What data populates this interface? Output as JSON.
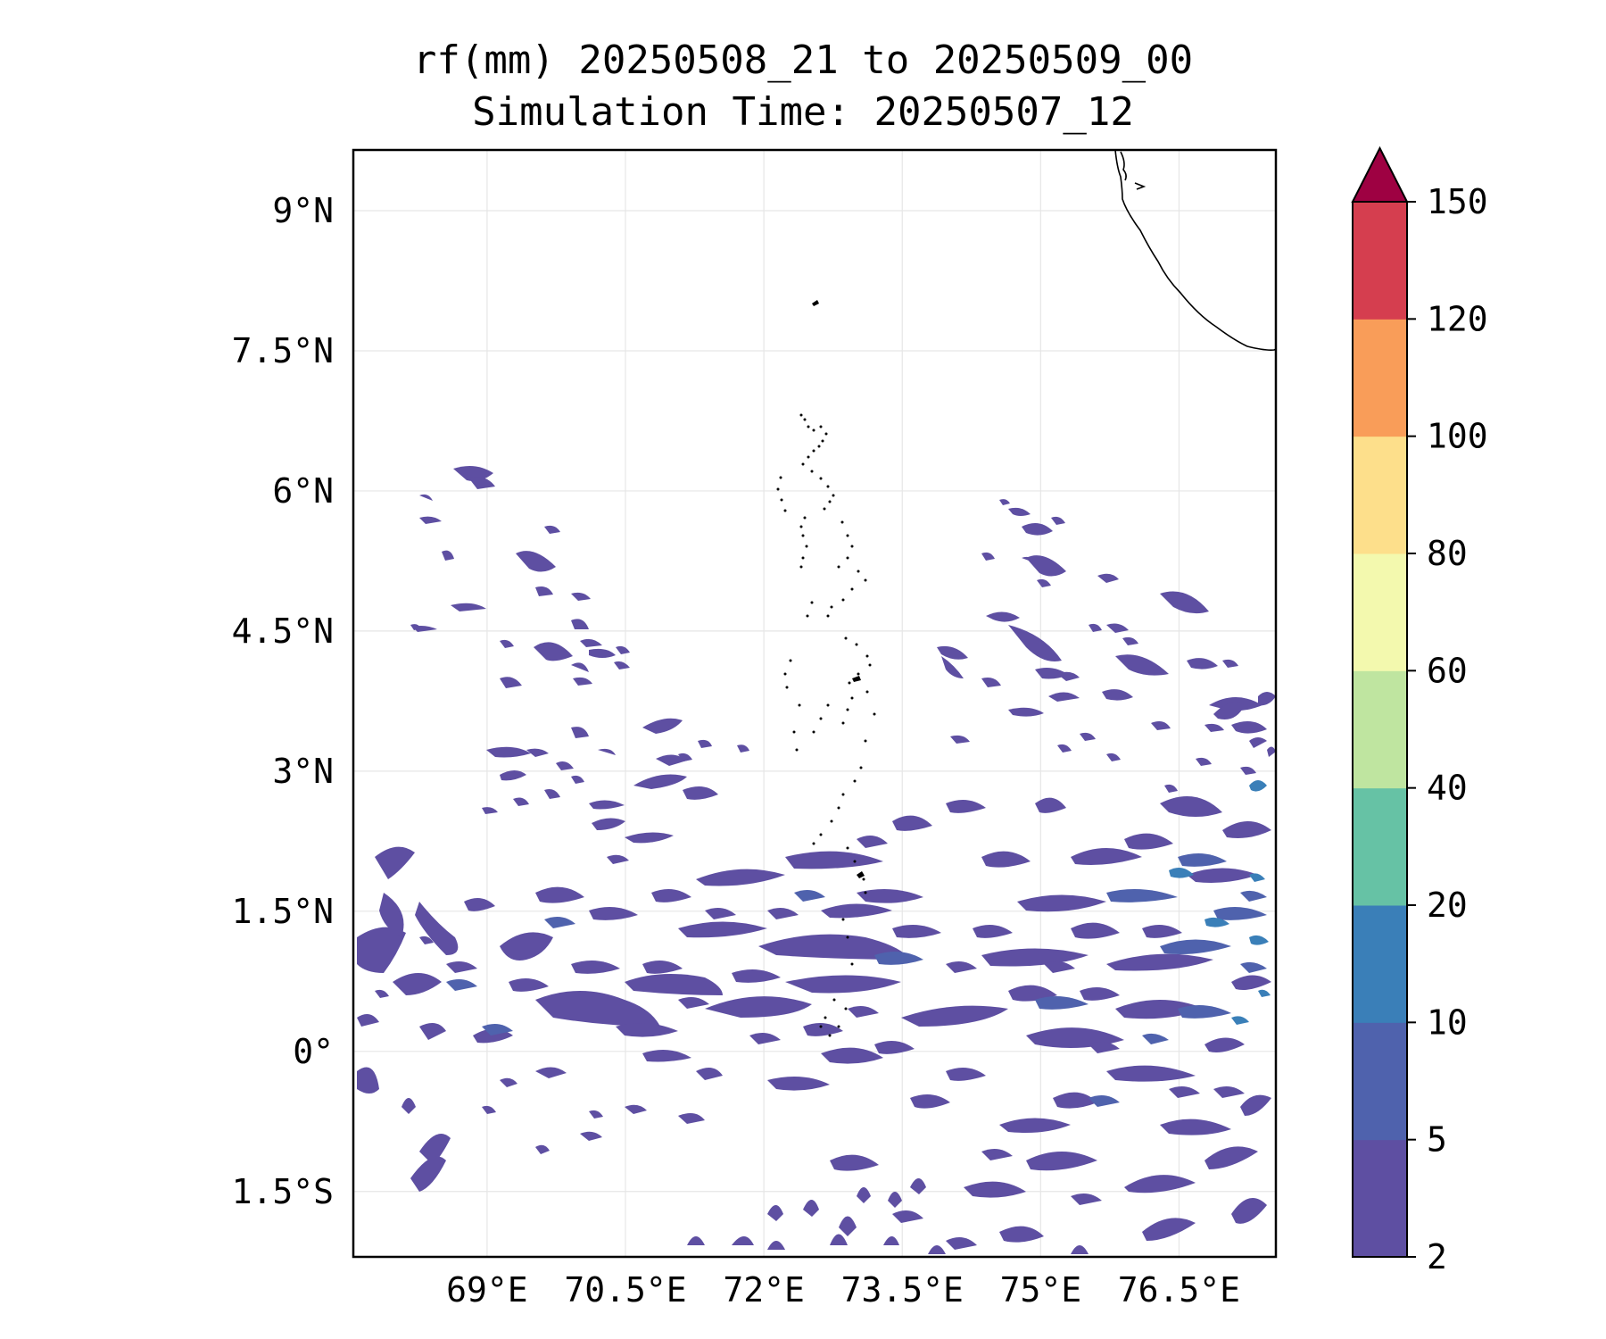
{
  "title_line1": "rf(mm) 20250508_21 to 20250509_00",
  "title_line2": "Simulation Time: 20250507_12",
  "map": {
    "lon_range": [
      67.55,
      77.55
    ],
    "lat_range": [
      -2.2,
      9.65
    ],
    "lon_ticks": [
      {
        "value": 69,
        "label": "69°E"
      },
      {
        "value": 70.5,
        "label": "70.5°E"
      },
      {
        "value": 72,
        "label": "72°E"
      },
      {
        "value": 73.5,
        "label": "73.5°E"
      },
      {
        "value": 75,
        "label": "75°E"
      },
      {
        "value": 76.5,
        "label": "76.5°E"
      }
    ],
    "lat_ticks": [
      {
        "value": 9,
        "label": "9°N"
      },
      {
        "value": 7.5,
        "label": "7.5°N"
      },
      {
        "value": 6,
        "label": "6°N"
      },
      {
        "value": 4.5,
        "label": "4.5°N"
      },
      {
        "value": 3,
        "label": "3°N"
      },
      {
        "value": 1.5,
        "label": "1.5°N"
      },
      {
        "value": 0,
        "label": "0°"
      },
      {
        "value": -1.5,
        "label": "1.5°S"
      }
    ],
    "gridlines": true
  },
  "colorbar": {
    "levels": [
      "2",
      "5",
      "10",
      "20",
      "40",
      "60",
      "80",
      "100",
      "120",
      "150"
    ],
    "colors": [
      "#5e4fa2",
      "#4f62ad",
      "#3a7fb8",
      "#66c2a5",
      "#bfe5a0",
      "#f3f9ae",
      "#fddf8b",
      "#f99d59",
      "#d53e4f"
    ],
    "extend_color": "#9e0142"
  }
}
